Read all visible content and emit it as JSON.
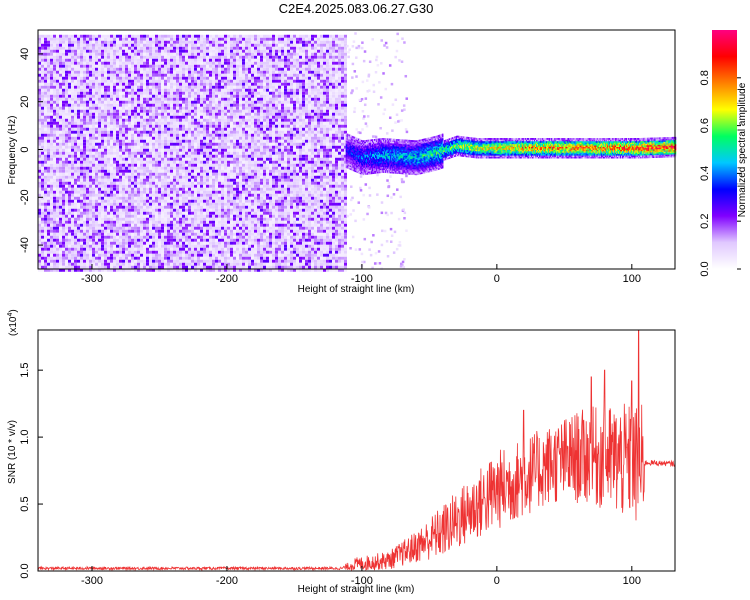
{
  "title": "C2E4.2025.083.06.27.G30",
  "chart_data": [
    {
      "type": "heatmap",
      "xlabel": "Height of straight line (km)",
      "ylabel": "Frequency (Hz)",
      "xlim": [
        -340,
        132
      ],
      "ylim": [
        -50,
        50
      ],
      "x_ticks": [
        -300,
        -200,
        -100,
        0,
        100
      ],
      "y_ticks": [
        -40,
        -20,
        0,
        20,
        40
      ],
      "colorbar": {
        "label": "Normalized spectral amplitude",
        "range": [
          0,
          1
        ],
        "ticks": [
          0.0,
          0.2,
          0.4,
          0.6,
          0.8
        ],
        "colors": [
          "#ffffff",
          "#e0c8ff",
          "#8000ff",
          "#0000ff",
          "#00c8ff",
          "#00ff60",
          "#ffff00",
          "#ff8000",
          "#ff0000",
          "#ff0080"
        ]
      },
      "noise_region": {
        "x_range": [
          -340,
          -112
        ],
        "y_range": [
          -50,
          48
        ],
        "amplitude": 0.2
      },
      "signal_band": [
        {
          "x": -112,
          "freq": 0,
          "amplitude": 0.35
        },
        {
          "x": -100,
          "freq": -3,
          "amplitude": 0.4
        },
        {
          "x": -85,
          "freq": -2,
          "amplitude": 0.45
        },
        {
          "x": -60,
          "freq": -3,
          "amplitude": 0.5
        },
        {
          "x": -45,
          "freq": -1,
          "amplitude": 0.55
        },
        {
          "x": -30,
          "freq": 2,
          "amplitude": 0.65
        },
        {
          "x": -15,
          "freq": 1,
          "amplitude": 0.7
        },
        {
          "x": 0,
          "freq": 1,
          "amplitude": 0.75
        },
        {
          "x": 20,
          "freq": 1,
          "amplitude": 0.8
        },
        {
          "x": 50,
          "freq": 1,
          "amplitude": 0.85
        },
        {
          "x": 80,
          "freq": 1,
          "amplitude": 0.85
        },
        {
          "x": 105,
          "freq": 1,
          "amplitude": 0.9
        },
        {
          "x": 132,
          "freq": 1.5,
          "amplitude": 0.95
        }
      ]
    },
    {
      "type": "line",
      "xlabel": "Height of straight line (km)",
      "ylabel": "SNR (10 * v/v)",
      "y_multiplier": "(x10",
      "y_multiplier_exp": "4",
      "y_multiplier_close": ")",
      "xlim": [
        -340,
        132
      ],
      "ylim": [
        0,
        1.8
      ],
      "x_ticks": [
        -300,
        -200,
        -100,
        0,
        100
      ],
      "y_ticks": [
        0.0,
        0.5,
        1.0,
        1.5
      ],
      "line_color": "#ee3333",
      "envelope": [
        {
          "x": -340,
          "mean": 0.02,
          "spread": 0.01
        },
        {
          "x": -115,
          "mean": 0.02,
          "spread": 0.01
        },
        {
          "x": -105,
          "mean": 0.05,
          "spread": 0.05
        },
        {
          "x": -80,
          "mean": 0.08,
          "spread": 0.07
        },
        {
          "x": -60,
          "mean": 0.18,
          "spread": 0.12
        },
        {
          "x": -40,
          "mean": 0.3,
          "spread": 0.2
        },
        {
          "x": -20,
          "mean": 0.45,
          "spread": 0.25
        },
        {
          "x": 0,
          "mean": 0.6,
          "spread": 0.3
        },
        {
          "x": 20,
          "mean": 0.7,
          "spread": 0.3
        },
        {
          "x": 40,
          "mean": 0.8,
          "spread": 0.3
        },
        {
          "x": 60,
          "mean": 0.85,
          "spread": 0.35
        },
        {
          "x": 80,
          "mean": 0.85,
          "spread": 0.4
        },
        {
          "x": 100,
          "mean": 0.8,
          "spread": 0.45
        },
        {
          "x": 108,
          "mean": 0.75,
          "spread": 0.5
        },
        {
          "x": 110,
          "mean": 0.81,
          "spread": 0.02
        },
        {
          "x": 132,
          "mean": 0.8,
          "spread": 0.02
        }
      ],
      "peaks": [
        {
          "x": 20,
          "y": 1.2
        },
        {
          "x": 70,
          "y": 1.45
        },
        {
          "x": 80,
          "y": 1.5
        },
        {
          "x": 100,
          "y": 1.42
        },
        {
          "x": 105,
          "y": 1.8
        }
      ]
    }
  ]
}
